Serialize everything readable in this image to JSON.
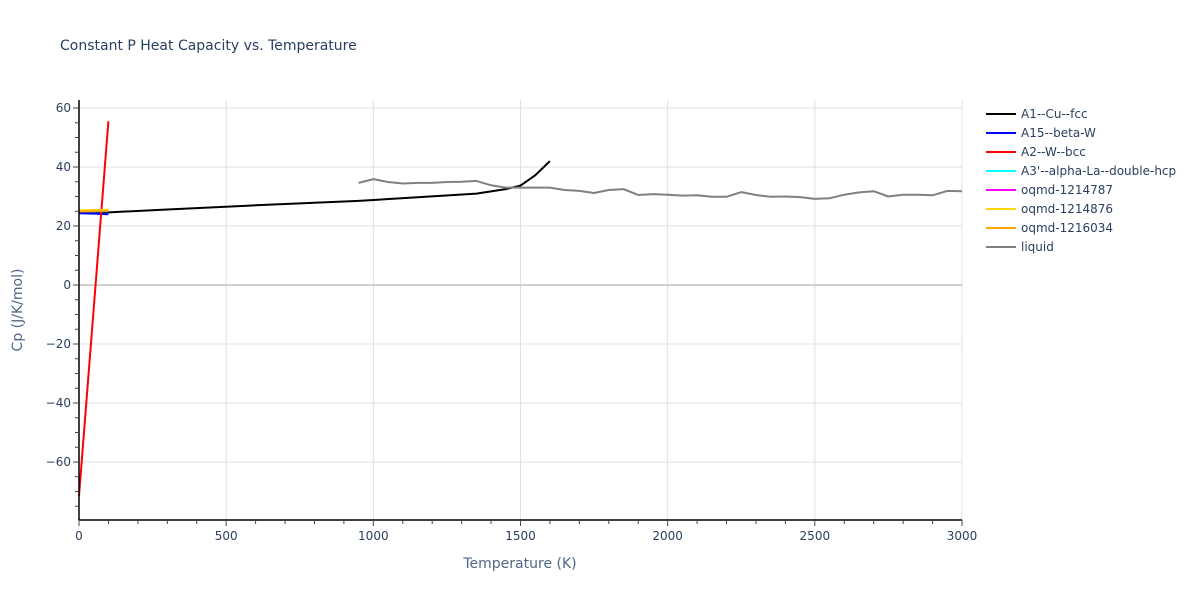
{
  "chart_data": {
    "type": "line",
    "title": "Constant P Heat Capacity vs. Temperature",
    "xlabel": "Temperature (K)",
    "ylabel": "Cp (J/K/mol)",
    "xlim": [
      0,
      3000
    ],
    "ylim": [
      -78,
      63
    ],
    "x_ticks": [
      0,
      500,
      1000,
      1500,
      2000,
      2500,
      3000
    ],
    "y_ticks": [
      -60,
      -40,
      -20,
      0,
      20,
      40,
      60
    ],
    "grid": true,
    "legend_position": "right",
    "series": [
      {
        "name": "A1--Cu--fcc",
        "color": "#000000",
        "x": [
          0,
          100,
          300,
          600,
          950,
          1350,
          1450,
          1500,
          1550,
          1600
        ],
        "y": [
          24.9,
          24.6,
          25.6,
          27.0,
          28.5,
          31.0,
          32.5,
          33.7,
          37.2,
          42.0
        ]
      },
      {
        "name": "A15--beta-W",
        "color": "#0000ff",
        "x": [
          0,
          50,
          100
        ],
        "y": [
          24.3,
          24.2,
          24.0
        ]
      },
      {
        "name": "A2--W--bcc",
        "color": "#ff0000",
        "x": [
          0,
          100
        ],
        "y": [
          -71.5,
          55.5
        ]
      },
      {
        "name": "A3'--alpha-La--double-hcp",
        "color": "#00ffff",
        "x": [
          0,
          100
        ],
        "y": [
          25.0,
          25.0
        ]
      },
      {
        "name": "oqmd-1214787",
        "color": "#ff00ff",
        "x": [
          0,
          100
        ],
        "y": [
          25.1,
          25.2
        ]
      },
      {
        "name": "oqmd-1214876",
        "color": "#ffd700",
        "x": [
          0,
          100
        ],
        "y": [
          25.3,
          25.5
        ]
      },
      {
        "name": "oqmd-1216034",
        "color": "#ffa500",
        "x": [
          0,
          100
        ],
        "y": [
          24.9,
          25.2
        ]
      },
      {
        "name": "liquid",
        "color": "#808080",
        "x": [
          950,
          1000,
          1050,
          1100,
          1150,
          1200,
          1250,
          1300,
          1350,
          1400,
          1450,
          1500,
          1550,
          1600,
          1650,
          1700,
          1750,
          1800,
          1850,
          1900,
          1950,
          2000,
          2050,
          2100,
          2150,
          2200,
          2250,
          2300,
          2350,
          2400,
          2450,
          2500,
          2550,
          2600,
          2650,
          2700,
          2750,
          2800,
          2850,
          2900,
          2950,
          3000
        ],
        "y": [
          34.6,
          35.9,
          34.9,
          34.4,
          34.6,
          34.6,
          34.9,
          35.0,
          35.3,
          33.8,
          33.0,
          33.0,
          33.0,
          33.0,
          32.2,
          31.9,
          31.2,
          32.2,
          32.5,
          30.5,
          30.8,
          30.6,
          30.3,
          30.4,
          29.9,
          29.9,
          31.5,
          30.5,
          29.9,
          30.0,
          29.8,
          29.2,
          29.4,
          30.6,
          31.4,
          31.8,
          30.0,
          30.6,
          30.6,
          30.4,
          31.9,
          31.8
        ]
      }
    ]
  }
}
